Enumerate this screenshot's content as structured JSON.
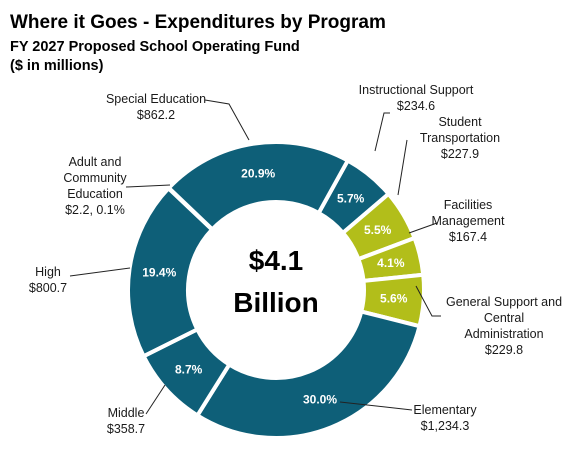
{
  "header": {
    "title": "Where it Goes - Expenditures by Program",
    "subtitle": "FY 2027 Proposed School Operating Fund",
    "units": "($ in millions)"
  },
  "chart_data": {
    "type": "pie",
    "style": "donut",
    "title": "Where it Goes - Expenditures by Program",
    "subtitle": "FY 2027 Proposed School Operating Fund",
    "units": "($ in millions)",
    "center_label": [
      "$4.1",
      "Billion"
    ],
    "colors": {
      "primary": "#0e5f78",
      "highlight": "#b2be1a"
    },
    "categories": [
      "Instructional Support",
      "Student Transportation",
      "Facilities Management",
      "General Support and Central Administration",
      "Elementary",
      "Middle",
      "High",
      "Adult and Community Education",
      "Special Education"
    ],
    "slices": [
      {
        "name": "Instructional Support",
        "label_lines": [
          "Instructional Support"
        ],
        "value": 234.6,
        "value_text": "$234.6",
        "pct": 5.7,
        "pct_text": "5.7%",
        "highlight": false
      },
      {
        "name": "Student Transportation",
        "label_lines": [
          "Student",
          "Transportation"
        ],
        "value": 227.9,
        "value_text": "$227.9",
        "pct": 5.5,
        "pct_text": "5.5%",
        "highlight": true
      },
      {
        "name": "Facilities Management",
        "label_lines": [
          "Facilities",
          "Management"
        ],
        "value": 167.4,
        "value_text": "$167.4",
        "pct": 4.1,
        "pct_text": "4.1%",
        "highlight": true
      },
      {
        "name": "General Support and Central Administration",
        "label_lines": [
          "General Support and",
          "Central",
          "Administration"
        ],
        "value": 229.8,
        "value_text": "$229.8",
        "pct": 5.6,
        "pct_text": "5.6%",
        "highlight": true
      },
      {
        "name": "Elementary",
        "label_lines": [
          "Elementary"
        ],
        "value": 1234.3,
        "value_text": "$1,234.3",
        "pct": 30.0,
        "pct_text": "30.0%",
        "highlight": false
      },
      {
        "name": "Middle",
        "label_lines": [
          "Middle"
        ],
        "value": 358.7,
        "value_text": "$358.7",
        "pct": 8.7,
        "pct_text": "8.7%",
        "highlight": false
      },
      {
        "name": "High",
        "label_lines": [
          "High"
        ],
        "value": 800.7,
        "value_text": "$800.7",
        "pct": 19.4,
        "pct_text": "19.4%",
        "highlight": false
      },
      {
        "name": "Adult and Community Education",
        "label_lines": [
          "Adult and",
          "Community",
          "Education"
        ],
        "value": 2.2,
        "value_text": "$2.2, 0.1%",
        "pct": 0.1,
        "pct_text": "",
        "highlight": false
      },
      {
        "name": "Special Education",
        "label_lines": [
          "Special Education"
        ],
        "value": 862.2,
        "value_text": "$862.2",
        "pct": 20.9,
        "pct_text": "20.9%",
        "highlight": false
      }
    ]
  }
}
